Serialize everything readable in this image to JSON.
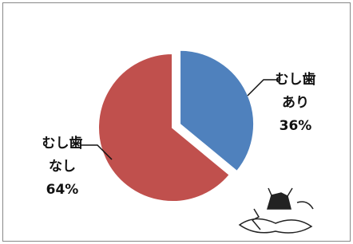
{
  "chart_data": {
    "type": "pie",
    "categories": [
      [
        "むし歯",
        "あり"
      ],
      [
        "むし歯",
        "なし"
      ]
    ],
    "values": [
      36,
      64
    ],
    "value_labels": [
      "36%",
      "64%"
    ],
    "colors": [
      "#4f81bd",
      "#c0504d"
    ],
    "exploded": [
      true,
      false
    ]
  }
}
